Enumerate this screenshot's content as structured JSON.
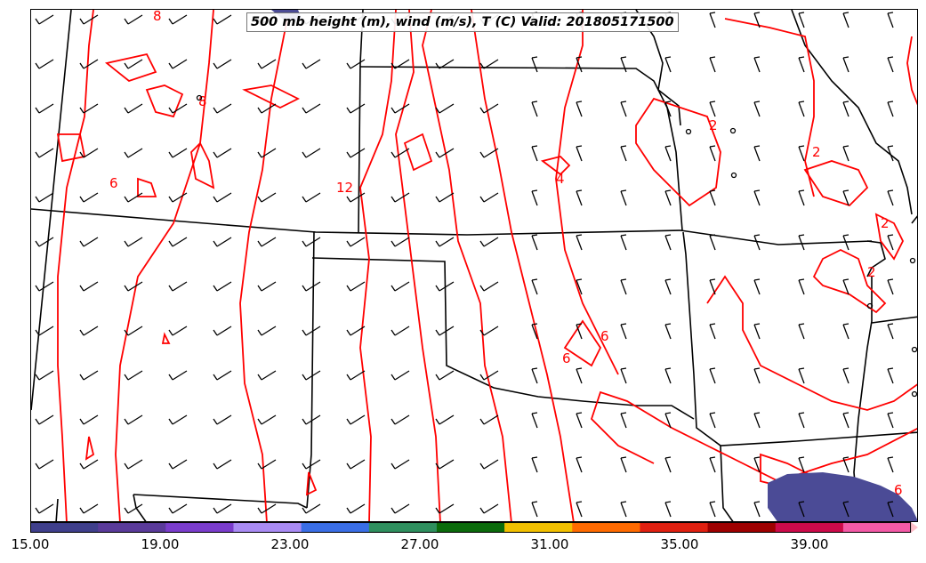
{
  "map": {
    "title": "500 mb height (m), wind (m/s), T (C) Valid: 201805171500",
    "contour_color": "#ff0000",
    "boundary_color": "#000000",
    "contour_labels": [
      "8",
      "8",
      "12",
      "6",
      "4",
      "2",
      "2",
      "2",
      "2",
      "6",
      "6",
      "6"
    ]
  },
  "colorbar": {
    "tick_labels": [
      "15.00",
      "19.00",
      "23.00",
      "27.00",
      "31.00",
      "35.00",
      "39.00"
    ],
    "colors": [
      "#3f3f8c",
      "#5a3a9a",
      "#7a3ccc",
      "#a98bf4",
      "#3a6ee6",
      "#2e8f5e",
      "#0b6b0b",
      "#f2c000",
      "#ff6a00",
      "#e02010",
      "#9e0000",
      "#cc0a4a",
      "#f35aa6",
      "#ffc0cb"
    ]
  }
}
